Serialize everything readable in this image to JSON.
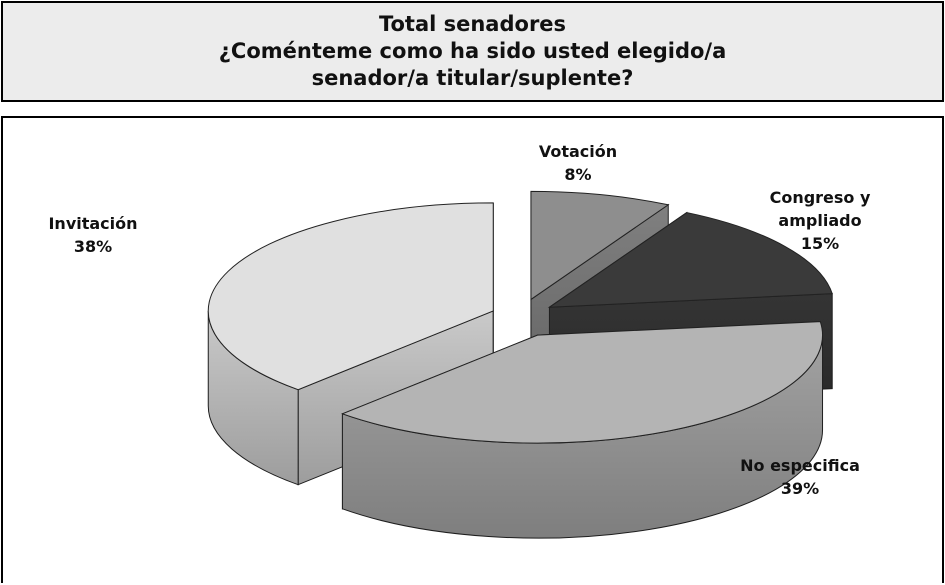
{
  "chart_data": {
    "type": "pie",
    "title": [
      "Total senadores",
      "¿Coménteme como ha sido usted elegido/a",
      "senador/a titular/suplente?"
    ],
    "categories": [
      "Votación",
      "Congreso y ampliado",
      "No especifica",
      "Invitación"
    ],
    "values": [
      8,
      15,
      39,
      38
    ],
    "value_labels": [
      "8%",
      "15%",
      "39%",
      "38%"
    ],
    "colors": [
      "#8e8e8e",
      "#3a3a3a",
      "#b4b4b4",
      "#e0e0e0"
    ]
  }
}
